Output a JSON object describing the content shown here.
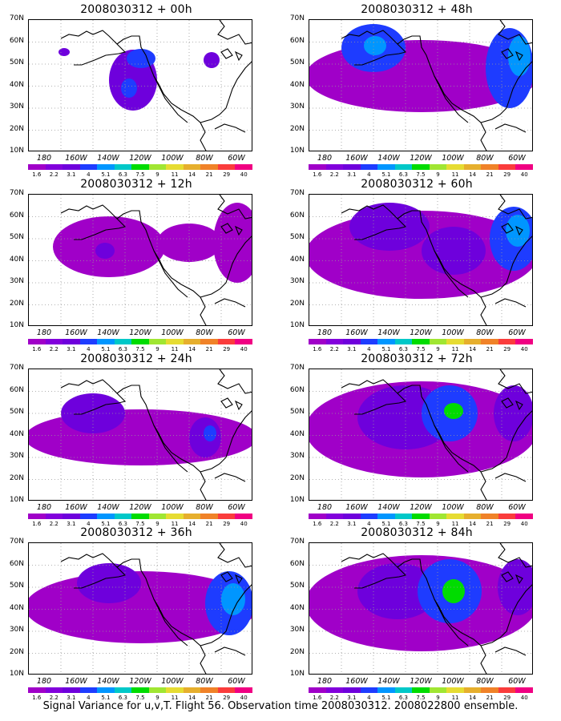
{
  "panels": [
    {
      "title": "2008030312 + 00h",
      "pos": "r1c1",
      "blobs": [
        {
          "cx": 130,
          "cy": 75,
          "rx": 30,
          "ry": 38,
          "level": 2
        },
        {
          "cx": 140,
          "cy": 48,
          "rx": 18,
          "ry": 12,
          "level": 3
        },
        {
          "cx": 125,
          "cy": 85,
          "rx": 10,
          "ry": 12,
          "level": 3
        },
        {
          "cx": 44,
          "cy": 40,
          "rx": 7,
          "ry": 5,
          "level": 2
        },
        {
          "cx": 228,
          "cy": 50,
          "rx": 10,
          "ry": 10,
          "level": 2
        }
      ]
    },
    {
      "title": "2008030312 + 48h",
      "pos": "r1c2",
      "blobs": [
        {
          "cx": 140,
          "cy": 70,
          "rx": 145,
          "ry": 45,
          "level": 1
        },
        {
          "cx": 80,
          "cy": 35,
          "rx": 40,
          "ry": 30,
          "level": 3
        },
        {
          "cx": 82,
          "cy": 32,
          "rx": 14,
          "ry": 12,
          "level": 4
        },
        {
          "cx": 250,
          "cy": 60,
          "rx": 30,
          "ry": 50,
          "level": 3
        },
        {
          "cx": 262,
          "cy": 45,
          "rx": 14,
          "ry": 25,
          "level": 4
        }
      ]
    },
    {
      "title": "2008030312 + 12h",
      "pos": "r2c1",
      "blobs": [
        {
          "cx": 100,
          "cy": 65,
          "rx": 70,
          "ry": 38,
          "level": 1
        },
        {
          "cx": 95,
          "cy": 70,
          "rx": 12,
          "ry": 10,
          "level": 2
        },
        {
          "cx": 200,
          "cy": 60,
          "rx": 40,
          "ry": 24,
          "level": 1
        },
        {
          "cx": 260,
          "cy": 60,
          "rx": 30,
          "ry": 50,
          "level": 1
        }
      ]
    },
    {
      "title": "2008030312 + 60h",
      "pos": "r2c2",
      "blobs": [
        {
          "cx": 140,
          "cy": 75,
          "rx": 145,
          "ry": 55,
          "level": 1
        },
        {
          "cx": 100,
          "cy": 40,
          "rx": 50,
          "ry": 30,
          "level": 2
        },
        {
          "cx": 180,
          "cy": 70,
          "rx": 40,
          "ry": 30,
          "level": 2
        },
        {
          "cx": 255,
          "cy": 55,
          "rx": 30,
          "ry": 40,
          "level": 3
        },
        {
          "cx": 260,
          "cy": 45,
          "rx": 15,
          "ry": 20,
          "level": 4
        }
      ]
    },
    {
      "title": "2008030312 + 24h",
      "pos": "r3c1",
      "blobs": [
        {
          "cx": 140,
          "cy": 85,
          "rx": 145,
          "ry": 35,
          "level": 1
        },
        {
          "cx": 80,
          "cy": 55,
          "rx": 40,
          "ry": 25,
          "level": 2
        },
        {
          "cx": 220,
          "cy": 85,
          "rx": 20,
          "ry": 25,
          "level": 2
        },
        {
          "cx": 226,
          "cy": 80,
          "rx": 8,
          "ry": 10,
          "level": 3
        }
      ]
    },
    {
      "title": "2008030312 + 72h",
      "pos": "r3c2",
      "blobs": [
        {
          "cx": 140,
          "cy": 75,
          "rx": 145,
          "ry": 60,
          "level": 1
        },
        {
          "cx": 120,
          "cy": 60,
          "rx": 60,
          "ry": 40,
          "level": 2
        },
        {
          "cx": 175,
          "cy": 55,
          "rx": 35,
          "ry": 35,
          "level": 3
        },
        {
          "cx": 180,
          "cy": 52,
          "rx": 12,
          "ry": 10,
          "level": 5
        },
        {
          "cx": 255,
          "cy": 55,
          "rx": 25,
          "ry": 35,
          "level": 2
        }
      ]
    },
    {
      "title": "2008030312 + 36h",
      "pos": "r4c1",
      "blobs": [
        {
          "cx": 140,
          "cy": 80,
          "rx": 145,
          "ry": 45,
          "level": 1
        },
        {
          "cx": 100,
          "cy": 50,
          "rx": 40,
          "ry": 25,
          "level": 2
        },
        {
          "cx": 250,
          "cy": 75,
          "rx": 30,
          "ry": 40,
          "level": 3
        },
        {
          "cx": 255,
          "cy": 70,
          "rx": 15,
          "ry": 20,
          "level": 4
        }
      ]
    },
    {
      "title": "2008030312 + 84h",
      "pos": "r4c2",
      "blobs": [
        {
          "cx": 140,
          "cy": 75,
          "rx": 145,
          "ry": 60,
          "level": 1
        },
        {
          "cx": 110,
          "cy": 60,
          "rx": 50,
          "ry": 35,
          "level": 2
        },
        {
          "cx": 175,
          "cy": 60,
          "rx": 40,
          "ry": 40,
          "level": 3
        },
        {
          "cx": 180,
          "cy": 60,
          "rx": 14,
          "ry": 15,
          "level": 5
        },
        {
          "cx": 260,
          "cy": 55,
          "rx": 25,
          "ry": 35,
          "level": 2
        }
      ]
    }
  ],
  "lat_labels": [
    "70N",
    "60N",
    "50N",
    "40N",
    "30N",
    "20N",
    "10N"
  ],
  "lon_labels": [
    "180",
    "160W",
    "140W",
    "120W",
    "100W",
    "80W",
    "60W"
  ],
  "colorbar": {
    "labels": [
      "1.6",
      "2.2",
      "3.1",
      "4",
      "5.1",
      "6.3",
      "7.5",
      "9",
      "11",
      "14",
      "21",
      "29",
      "40"
    ],
    "colors": [
      "#a000c8",
      "#8200dc",
      "#6e00dc",
      "#1e3cff",
      "#0096ff",
      "#00c8c8",
      "#00dc00",
      "#a0e632",
      "#e6dc32",
      "#e6af2d",
      "#f08228",
      "#fa3c3c",
      "#f00082"
    ]
  },
  "caption": "Signal Variance for u,v,T. Flight 56. Observation time 2008030312. 2008022800 ensemble.",
  "colors": {
    "coast": "#000000",
    "grid": "#999999"
  }
}
